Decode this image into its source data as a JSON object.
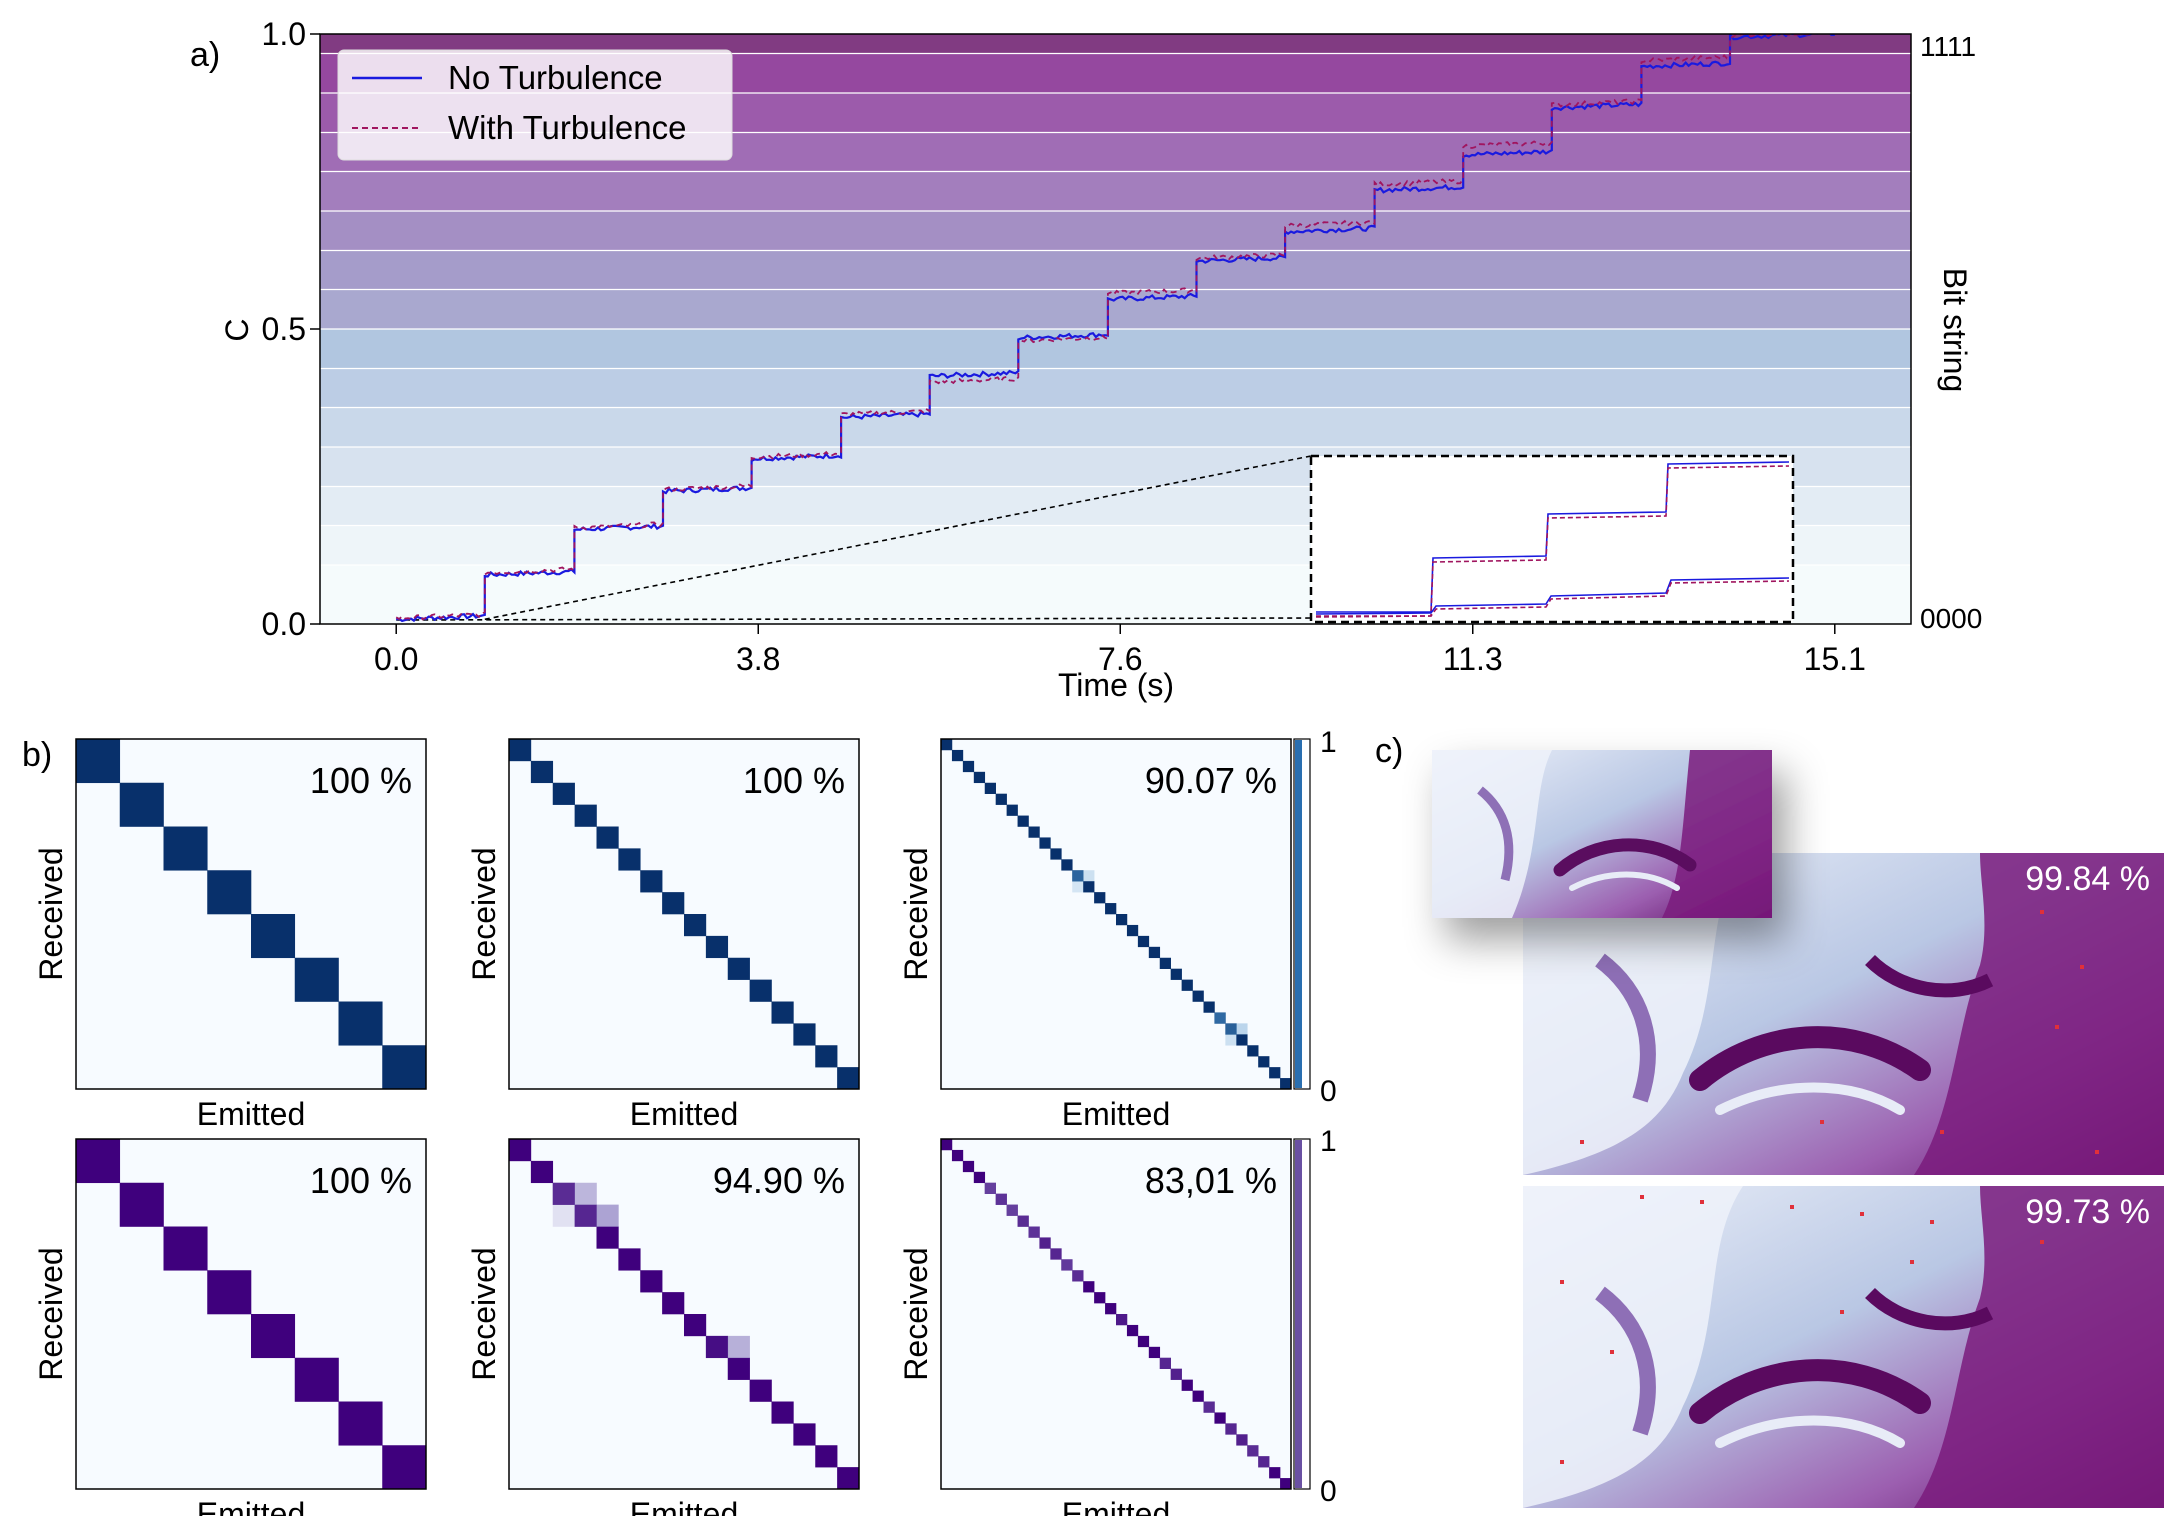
{
  "panel_labels": {
    "a": "a)",
    "b": "b)",
    "c": "c)"
  },
  "chart_data": [
    {
      "type": "line",
      "panel": "a",
      "xlabel": "Time (s)",
      "ylabel": "C",
      "right_label": "Bit string",
      "right_ticks": [
        "1111",
        "0000"
      ],
      "xticks": [
        0.0,
        3.8,
        7.6,
        11.3,
        15.1
      ],
      "xtick_labels": [
        "0.0",
        "3.8",
        "7.6",
        "11.3",
        "15.1"
      ],
      "yticks": [
        0.0,
        0.5,
        1.0
      ],
      "ytick_labels": [
        "0.0",
        "0.5",
        "1.0"
      ],
      "xlim": [
        -0.8,
        15.9
      ],
      "ylim": [
        0,
        1
      ],
      "band_edges": [
        0,
        0.1,
        0.167,
        0.233,
        0.3,
        0.367,
        0.433,
        0.5,
        0.567,
        0.633,
        0.7,
        0.767,
        0.833,
        0.9,
        0.967,
        1.0
      ],
      "band_colors": [
        "#f5fbfc",
        "#eef5f9",
        "#e3ecf4",
        "#d7e2ef",
        "#c9d8ea",
        "#bccde5",
        "#b1c6e0",
        "#a9a8cf",
        "#a59cca",
        "#a48fc4",
        "#a37ebd",
        "#a06db5",
        "#9c5bab",
        "#95489f",
        "#813b82"
      ],
      "legend": {
        "position": "top-left",
        "entries": [
          "No Turbulence",
          "With Turbulence"
        ]
      },
      "steps_x": [
        0,
        0.93,
        1.87,
        2.8,
        3.73,
        4.67,
        5.6,
        6.53,
        7.47,
        8.4,
        9.33,
        10.27,
        11.2,
        12.13,
        13.07,
        14.0,
        15.1
      ],
      "series": [
        {
          "name": "No Turbulence",
          "style": "solid",
          "color": "#1a1adf",
          "levels": [
            0.008,
            0.083,
            0.16,
            0.225,
            0.28,
            0.35,
            0.42,
            0.485,
            0.55,
            0.615,
            0.665,
            0.735,
            0.795,
            0.875,
            0.945,
            0.995
          ]
        },
        {
          "name": "With Turbulence",
          "style": "dashed",
          "color": "#a0155f",
          "levels": [
            0.01,
            0.087,
            0.163,
            0.228,
            0.283,
            0.355,
            0.41,
            0.48,
            0.56,
            0.62,
            0.675,
            0.745,
            0.81,
            0.88,
            0.955,
            0.998
          ]
        }
      ],
      "inset": {
        "shows_x_range": [
          0,
          0.93
        ]
      }
    },
    {
      "type": "heatmap",
      "panel": "b",
      "xlabel": "Emitted",
      "ylabel": "Received",
      "colorbar_ticks": [
        "1",
        "0"
      ],
      "rows": [
        {
          "palette": "blue",
          "base_color": "#08306b",
          "matrices": [
            {
              "size": 8,
              "accuracy": "100 %",
              "off": []
            },
            {
              "size": 16,
              "accuracy": "100 %",
              "off": []
            },
            {
              "size": 32,
              "accuracy": "90.07 %",
              "off": [
                [
                  12,
                  12,
                  0.55
                ],
                [
                  12,
                  13,
                  0.25
                ],
                [
                  13,
                  12,
                  0.2
                ],
                [
                  25,
                  25,
                  0.6
                ],
                [
                  26,
                  26,
                  0.5
                ],
                [
                  26,
                  27,
                  0.35
                ],
                [
                  27,
                  26,
                  0.25
                ]
              ]
            }
          ]
        },
        {
          "palette": "purple",
          "base_color": "#3f007d",
          "matrices": [
            {
              "size": 8,
              "accuracy": "100 %",
              "off": []
            },
            {
              "size": 16,
              "accuracy": "94.90 %",
              "off": [
                [
                  2,
                  2,
                  0.35
                ],
                [
                  3,
                  2,
                  0.2
                ],
                [
                  2,
                  3,
                  0.55
                ],
                [
                  3,
                  3,
                  0.3
                ],
                [
                  3,
                  4,
                  0.7
                ],
                [
                  9,
                  9,
                  0.1
                ],
                [
                  9,
                  10,
                  0.6
                ]
              ]
            },
            {
              "size": 32,
              "accuracy": "83,01 %",
              "off": [
                [
                  4,
                  4,
                  0.5
                ],
                [
                  5,
                  5,
                  0.4
                ],
                [
                  6,
                  6,
                  0.5
                ],
                [
                  7,
                  7,
                  0.35
                ],
                [
                  8,
                  8,
                  0.4
                ],
                [
                  9,
                  9,
                  0.25
                ],
                [
                  10,
                  10,
                  0.3
                ],
                [
                  11,
                  11,
                  0.45
                ],
                [
                  12,
                  12,
                  0.35
                ],
                [
                  16,
                  16,
                  0.2
                ],
                [
                  20,
                  20,
                  0.3
                ],
                [
                  21,
                  21,
                  0.25
                ],
                [
                  24,
                  24,
                  0.35
                ],
                [
                  26,
                  26,
                  0.3
                ],
                [
                  27,
                  27,
                  0.25
                ],
                [
                  28,
                  28,
                  0.35
                ],
                [
                  29,
                  29,
                  0.3
                ]
              ]
            }
          ]
        }
      ]
    }
  ],
  "panel_c": {
    "images": [
      {
        "label": "original-image"
      },
      {
        "accuracy": "99.84 %"
      },
      {
        "accuracy": "99.73 %"
      }
    ]
  }
}
